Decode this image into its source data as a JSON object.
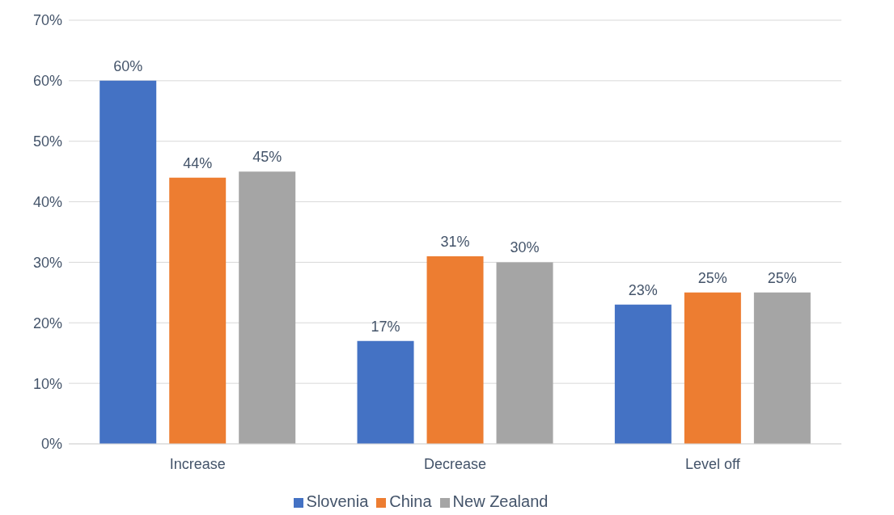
{
  "chart_data": {
    "type": "bar",
    "categories": [
      "Increase",
      "Decrease",
      "Level off"
    ],
    "series": [
      {
        "name": "Slovenia",
        "color": "#4472c4",
        "values": [
          60,
          17,
          23
        ],
        "value_labels": [
          "60%",
          "17%",
          "23%"
        ]
      },
      {
        "name": "China",
        "color": "#ed7d31",
        "values": [
          44,
          31,
          25
        ],
        "value_labels": [
          "44%",
          "31%",
          "25%"
        ]
      },
      {
        "name": "New Zealand",
        "color": "#a5a5a5",
        "values": [
          45,
          30,
          25
        ],
        "value_labels": [
          "45%",
          "30%",
          "25%"
        ]
      }
    ],
    "ylim": [
      0,
      70
    ],
    "yticks": [
      {
        "value": 0,
        "label": "0%"
      },
      {
        "value": 10,
        "label": "10%"
      },
      {
        "value": 20,
        "label": "20%"
      },
      {
        "value": 30,
        "label": "30%"
      },
      {
        "value": 40,
        "label": "40%"
      },
      {
        "value": 50,
        "label": "50%"
      },
      {
        "value": 60,
        "label": "60%"
      },
      {
        "value": 70,
        "label": "70%"
      }
    ],
    "grid": "y",
    "legend": "bottom"
  }
}
